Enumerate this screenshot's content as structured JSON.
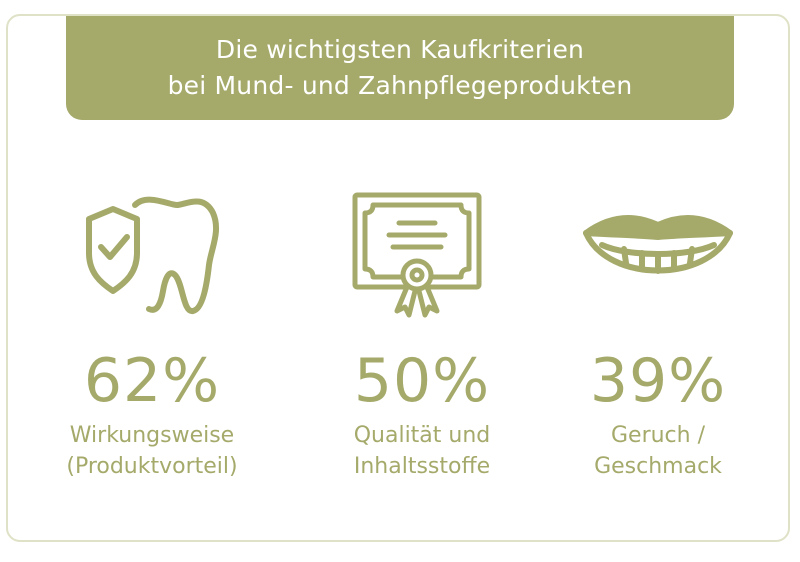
{
  "title": {
    "line1": "Die wichtigsten Kaufkriterien",
    "line2": "bei Mund- und Zahnpflegeprodukten"
  },
  "criteria": [
    {
      "icon": "tooth-shield-check-icon",
      "percent": "62%",
      "label_line1": "Wirkungsweise",
      "label_line2": "(Produktvorteil)"
    },
    {
      "icon": "certificate-icon",
      "percent": "50%",
      "label_line1": "Qualität und",
      "label_line2": "Inhaltsstoffe"
    },
    {
      "icon": "smile-teeth-icon",
      "percent": "39%",
      "label_line1": "Geruch /",
      "label_line2": "Geschmack"
    }
  ],
  "colors": {
    "accent": "#a5aa6b",
    "border": "#dfe2c6",
    "background": "#ffffff",
    "title_text": "#ffffff"
  }
}
